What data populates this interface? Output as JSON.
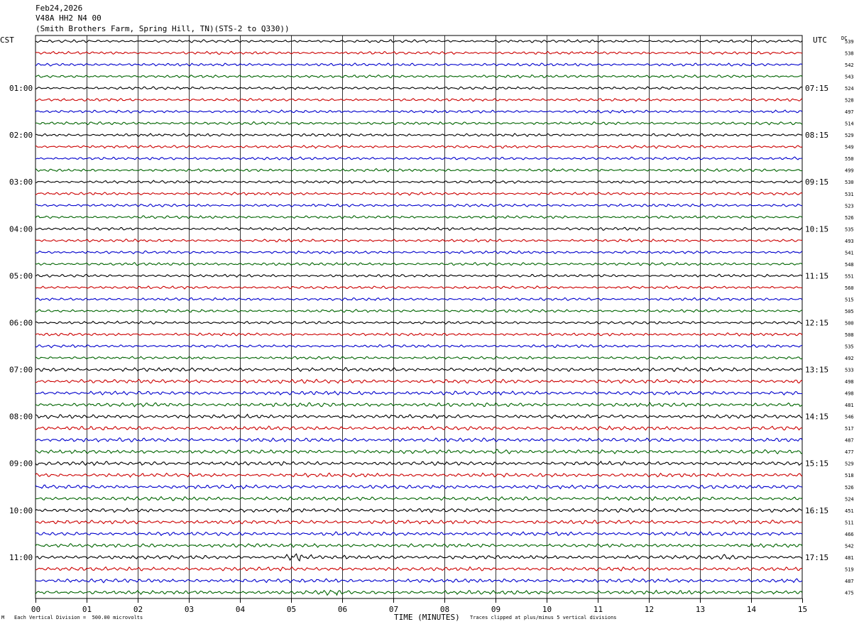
{
  "header": {
    "date": "Feb24,2026",
    "station": "V48A HH2 N4 00",
    "site": "(Smith Brothers Farm, Spring Hill, TN)(STS-2 to Q330))"
  },
  "left_tz": "CST",
  "right_tz": "UTC",
  "dc_label": "DC",
  "footer": {
    "scale": "Each Vertical Division =  500.00 microvolts",
    "clip": "Traces clipped at plus/minus 5 vertical divisions",
    "corner": "M"
  },
  "chart_data": {
    "type": "line",
    "xlabel": "TIME (MINUTES)",
    "x_ticks": [
      "00",
      "01",
      "02",
      "03",
      "04",
      "05",
      "06",
      "07",
      "08",
      "09",
      "10",
      "11",
      "12",
      "13",
      "14",
      "15"
    ],
    "xlim": [
      0,
      15
    ],
    "left_hour_labels": [
      "01:00",
      "02:00",
      "03:00",
      "04:00",
      "05:00",
      "06:00",
      "07:00",
      "08:00",
      "09:00",
      "10:00",
      "11:00"
    ],
    "right_hour_labels": [
      "07:15",
      "08:15",
      "09:15",
      "10:15",
      "11:15",
      "12:15",
      "13:15",
      "14:15",
      "15:15",
      "16:15",
      "17:15"
    ],
    "trace_colors": [
      "#000000",
      "#cc0000",
      "#0000cc",
      "#006400"
    ],
    "dc_offsets": [
      539,
      538,
      542,
      543,
      524,
      528,
      497,
      514,
      529,
      549,
      550,
      499,
      530,
      531,
      523,
      526,
      535,
      493,
      541,
      548,
      551,
      560,
      515,
      505,
      500,
      508,
      535,
      492,
      533,
      498,
      498,
      481,
      546,
      517,
      487,
      477,
      529,
      518,
      526,
      524,
      451,
      511,
      466,
      542,
      481,
      519,
      487,
      475
    ],
    "events": [
      {
        "trace": 44,
        "minute": 5.0,
        "amplitude": "large"
      },
      {
        "trace": 44,
        "minute": 13.4,
        "amplitude": "moderate"
      },
      {
        "trace": 47,
        "minute": 5.7,
        "amplitude": "moderate"
      },
      {
        "trace": 35,
        "minute": 9.0,
        "amplitude": "moderate"
      }
    ]
  }
}
